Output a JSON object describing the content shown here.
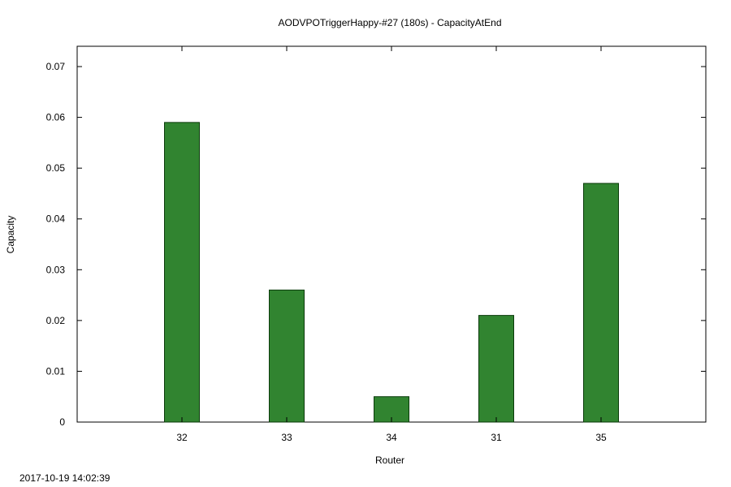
{
  "chart_data": {
    "type": "bar",
    "title": "AODVPOTriggerHappy-#27 (180s) - CapacityAtEnd",
    "xlabel": "Router",
    "ylabel": "Capacity",
    "categories": [
      "32",
      "33",
      "34",
      "31",
      "35"
    ],
    "values": [
      0.059,
      0.026,
      0.005,
      0.021,
      0.047
    ],
    "ylim": [
      0,
      0.074
    ],
    "yticks": [
      0,
      0.01,
      0.02,
      0.03,
      0.04,
      0.05,
      0.06,
      0.07
    ],
    "ytick_labels": [
      "0",
      "0.01",
      "0.02",
      "0.03",
      "0.04",
      "0.05",
      "0.06",
      "0.07"
    ],
    "grid": false,
    "bar_color": "#318430",
    "bar_edge_color": "#0a3a0a"
  },
  "timestamp": "2017-10-19 14:02:39"
}
